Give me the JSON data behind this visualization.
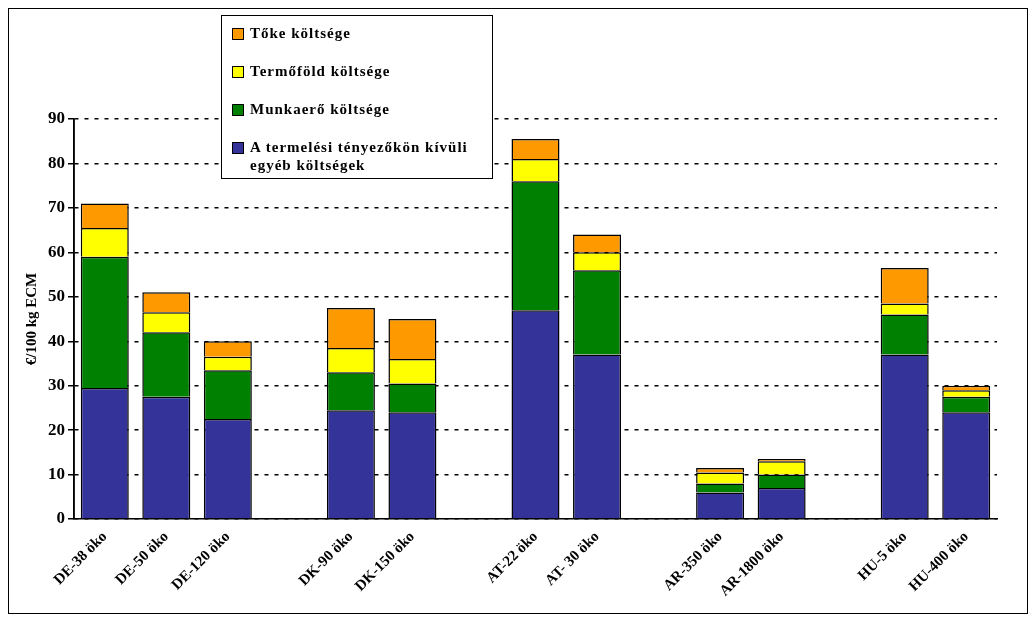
{
  "chart_data": {
    "type": "bar",
    "stacked": true,
    "ylabel": "€/100 kg ECM",
    "categories": [
      "DE-38 öko",
      "DE-50 öko",
      "DE-120 öko",
      null,
      "DK-90 öko",
      "DK-150 öko",
      null,
      "AT-22 öko",
      "AT- 30 öko",
      null,
      "AR-350 öko",
      "AR-1800 öko",
      null,
      "HU-5 öko",
      "HU-400 öko"
    ],
    "series": [
      {
        "name": "A termelési tényezőkön kívüli egyéb költségek",
        "color": "#333399",
        "values": [
          29.5,
          27.5,
          22.5,
          null,
          24.5,
          24,
          null,
          47,
          37,
          null,
          6,
          7,
          null,
          37,
          24
        ]
      },
      {
        "name": "Munkaerő költsége",
        "color": "#008000",
        "values": [
          29.5,
          14.5,
          11,
          null,
          8.5,
          6.5,
          null,
          29,
          19,
          null,
          2,
          3,
          null,
          9,
          3.5
        ]
      },
      {
        "name": "Termőföld költsége",
        "color": "#ffff00",
        "values": [
          6.5,
          4.5,
          3,
          null,
          5.5,
          5.5,
          null,
          5,
          4,
          null,
          2.5,
          3,
          null,
          2.5,
          1.5
        ]
      },
      {
        "name": "Tőke költsége",
        "color": "#ff9900",
        "values": [
          5.5,
          4.5,
          3.5,
          null,
          9,
          9,
          null,
          4.5,
          4,
          null,
          1,
          0.5,
          null,
          8,
          1
        ]
      }
    ],
    "ylim": [
      0,
      90
    ],
    "yticks": [
      0,
      10,
      20,
      30,
      40,
      50,
      60,
      70,
      80,
      90
    ],
    "grid": "y",
    "legend": "top"
  }
}
